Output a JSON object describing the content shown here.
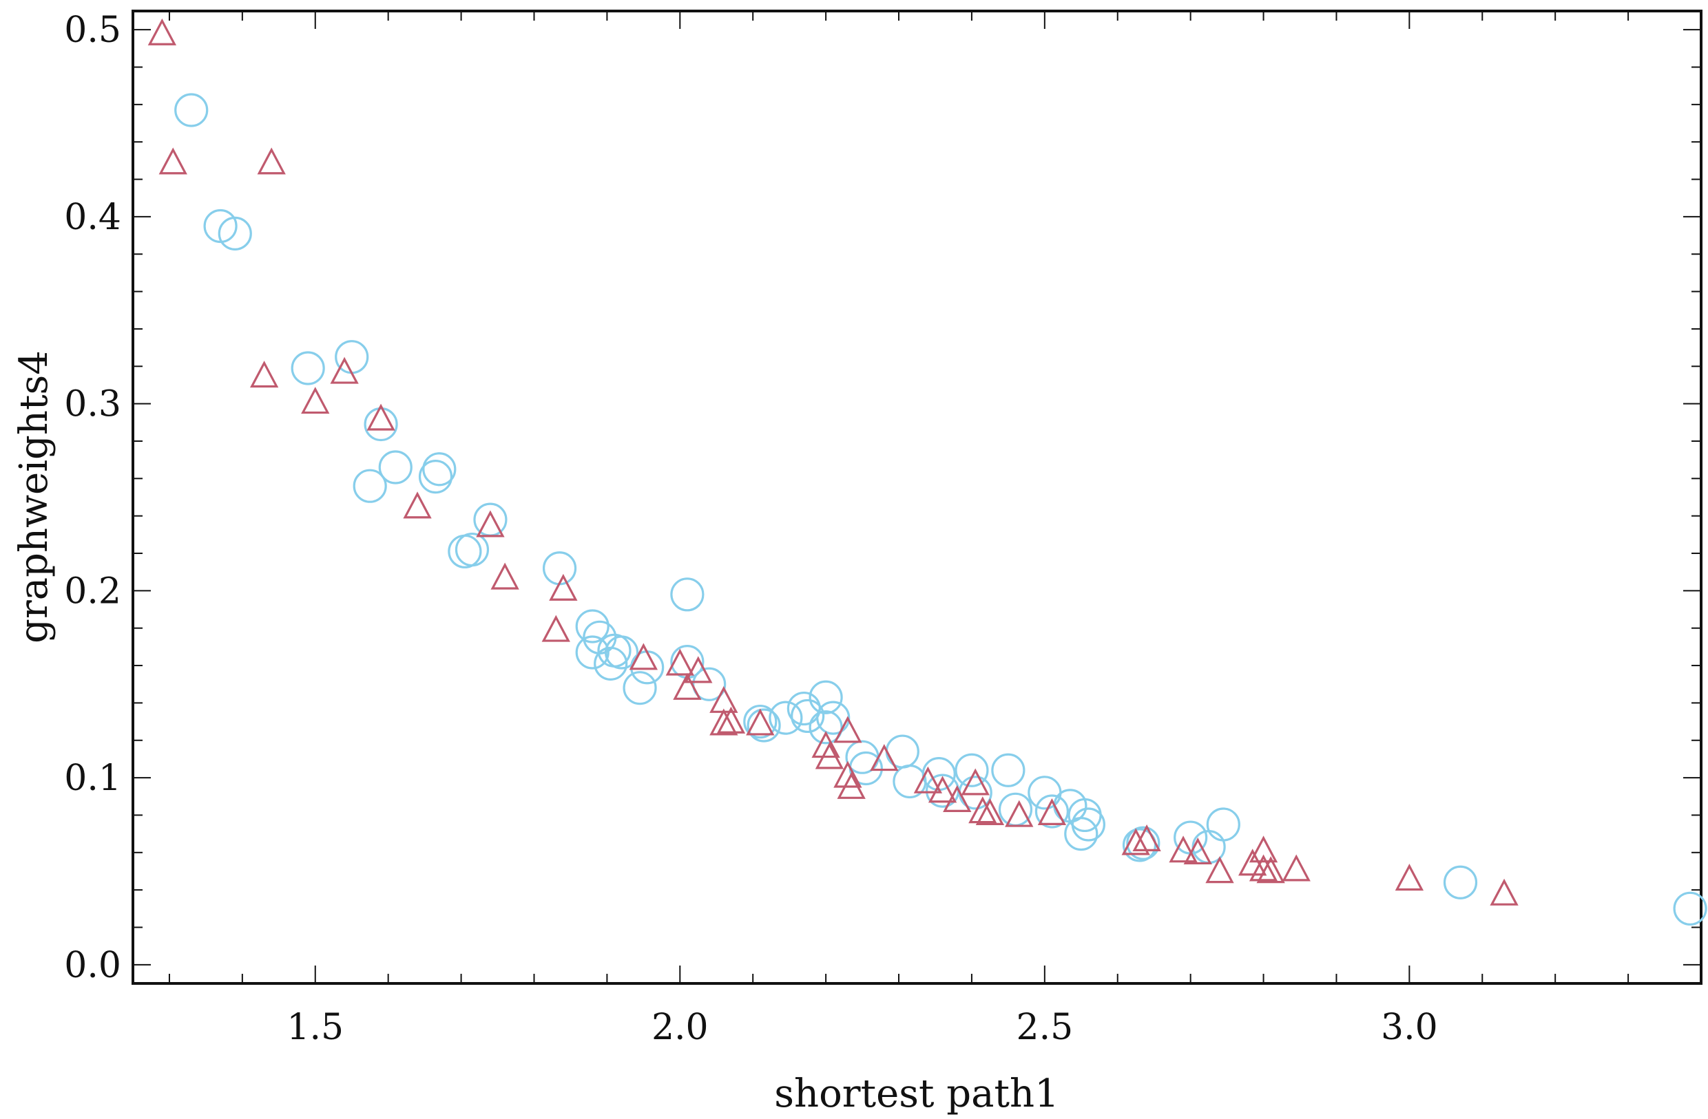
{
  "chart_data": {
    "type": "scatter",
    "title": "",
    "xlabel": "shortest path1",
    "ylabel": "graphweights4",
    "xlim": [
      1.25,
      3.4
    ],
    "ylim": [
      -0.01,
      0.51
    ],
    "x_ticks": [
      "1.5",
      "2.0",
      "2.5",
      "3.0"
    ],
    "y_ticks": [
      "0.0",
      "0.1",
      "0.2",
      "0.3",
      "0.4",
      "0.5"
    ],
    "grid": false,
    "legend": "none",
    "series": [
      {
        "marker": "circle",
        "color": "#87ceeb",
        "points": [
          [
            1.33,
            0.457
          ],
          [
            1.37,
            0.395
          ],
          [
            1.39,
            0.391
          ],
          [
            1.49,
            0.319
          ],
          [
            1.55,
            0.325
          ],
          [
            1.59,
            0.289
          ],
          [
            1.575,
            0.256
          ],
          [
            1.61,
            0.266
          ],
          [
            1.665,
            0.261
          ],
          [
            1.67,
            0.265
          ],
          [
            1.705,
            0.221
          ],
          [
            1.715,
            0.222
          ],
          [
            1.74,
            0.238
          ],
          [
            1.835,
            0.212
          ],
          [
            1.88,
            0.181
          ],
          [
            1.89,
            0.175
          ],
          [
            1.88,
            0.167
          ],
          [
            1.905,
            0.161
          ],
          [
            1.91,
            0.168
          ],
          [
            1.92,
            0.167
          ],
          [
            1.945,
            0.148
          ],
          [
            1.955,
            0.159
          ],
          [
            2.01,
            0.198
          ],
          [
            2.01,
            0.162
          ],
          [
            2.04,
            0.15
          ],
          [
            2.11,
            0.13
          ],
          [
            2.115,
            0.128
          ],
          [
            2.145,
            0.132
          ],
          [
            2.17,
            0.137
          ],
          [
            2.175,
            0.133
          ],
          [
            2.2,
            0.143
          ],
          [
            2.2,
            0.127
          ],
          [
            2.21,
            0.132
          ],
          [
            2.25,
            0.111
          ],
          [
            2.255,
            0.105
          ],
          [
            2.305,
            0.114
          ],
          [
            2.315,
            0.098
          ],
          [
            2.355,
            0.102
          ],
          [
            2.36,
            0.093
          ],
          [
            2.4,
            0.104
          ],
          [
            2.405,
            0.092
          ],
          [
            2.45,
            0.104
          ],
          [
            2.46,
            0.083
          ],
          [
            2.5,
            0.092
          ],
          [
            2.51,
            0.082
          ],
          [
            2.535,
            0.085
          ],
          [
            2.55,
            0.07
          ],
          [
            2.555,
            0.08
          ],
          [
            2.56,
            0.075
          ],
          [
            2.63,
            0.064
          ],
          [
            2.635,
            0.065
          ],
          [
            2.7,
            0.068
          ],
          [
            2.725,
            0.063
          ],
          [
            2.745,
            0.075
          ],
          [
            3.07,
            0.044
          ],
          [
            3.385,
            0.03
          ]
        ]
      },
      {
        "marker": "triangle",
        "color": "#c05a6e",
        "points": [
          [
            1.29,
            0.497
          ],
          [
            1.305,
            0.428
          ],
          [
            1.44,
            0.428
          ],
          [
            1.43,
            0.314
          ],
          [
            1.5,
            0.3
          ],
          [
            1.54,
            0.316
          ],
          [
            1.59,
            0.291
          ],
          [
            1.64,
            0.244
          ],
          [
            1.74,
            0.234
          ],
          [
            1.76,
            0.206
          ],
          [
            1.83,
            0.178
          ],
          [
            1.84,
            0.2
          ],
          [
            1.95,
            0.163
          ],
          [
            2.0,
            0.16
          ],
          [
            2.01,
            0.147
          ],
          [
            2.025,
            0.156
          ],
          [
            2.06,
            0.14
          ],
          [
            2.06,
            0.128
          ],
          [
            2.07,
            0.129
          ],
          [
            2.11,
            0.128
          ],
          [
            2.2,
            0.116
          ],
          [
            2.205,
            0.11
          ],
          [
            2.23,
            0.124
          ],
          [
            2.23,
            0.1
          ],
          [
            2.235,
            0.094
          ],
          [
            2.28,
            0.109
          ],
          [
            2.34,
            0.097
          ],
          [
            2.36,
            0.092
          ],
          [
            2.38,
            0.087
          ],
          [
            2.405,
            0.096
          ],
          [
            2.415,
            0.081
          ],
          [
            2.425,
            0.08
          ],
          [
            2.465,
            0.079
          ],
          [
            2.51,
            0.08
          ],
          [
            2.625,
            0.064
          ],
          [
            2.64,
            0.066
          ],
          [
            2.69,
            0.06
          ],
          [
            2.71,
            0.059
          ],
          [
            2.74,
            0.049
          ],
          [
            2.785,
            0.053
          ],
          [
            2.8,
            0.06
          ],
          [
            2.8,
            0.05
          ],
          [
            2.81,
            0.049
          ],
          [
            2.845,
            0.05
          ],
          [
            3.0,
            0.045
          ],
          [
            3.13,
            0.037
          ]
        ]
      }
    ]
  }
}
